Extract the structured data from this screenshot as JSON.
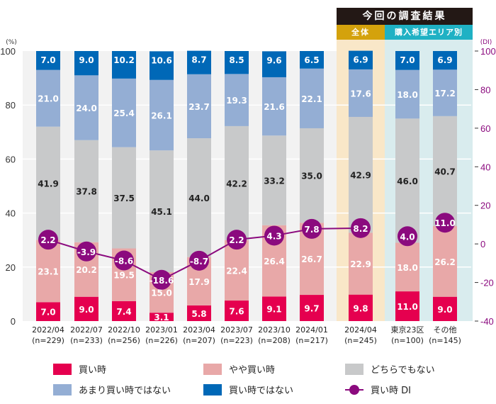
{
  "header": {
    "title": "今回の調査結果",
    "all_label": "全体",
    "area_label": "購入希望エリア別"
  },
  "colors": {
    "buy": "#e5004f",
    "somewhat_buy": "#e8a8a8",
    "neither": "#c8c9ca",
    "not_really": "#94aed4",
    "not_buy": "#0068b7",
    "di": "#8b0a7e",
    "bg_past": "#f2f2f2",
    "bg_all": "#f9e7c8",
    "bg_area": "#d9ecee"
  },
  "chart_data": {
    "type": "bar",
    "stacked": true,
    "title": "今回の調査結果",
    "ylabel": "(%)",
    "y2label": "(DI)",
    "ylim": [
      0,
      100
    ],
    "y2lim": [
      -40,
      100
    ],
    "yticks": [
      0,
      20,
      40,
      60,
      80,
      100
    ],
    "y2ticks": [
      -40,
      -20,
      0,
      20,
      40,
      60,
      80,
      100
    ],
    "grid": true,
    "legend_position": "bottom",
    "categories": [
      "2022/04",
      "2022/07",
      "2022/10",
      "2023/01",
      "2023/04",
      "2023/07",
      "2023/10",
      "2024/01",
      "2024/04",
      "東京23区",
      "その他"
    ],
    "sample_sizes": [
      "(n=229)",
      "(n=233)",
      "(n=256)",
      "(n=226)",
      "(n=207)",
      "(n=223)",
      "(n=208)",
      "(n=217)",
      "(n=245)",
      "(n=100)",
      "(n=145)"
    ],
    "groups": [
      "past",
      "past",
      "past",
      "past",
      "past",
      "past",
      "past",
      "past",
      "all",
      "area",
      "area"
    ],
    "series": [
      {
        "name": "買い時",
        "key": "buy",
        "values": [
          7.0,
          9.0,
          7.4,
          3.1,
          5.8,
          7.6,
          9.1,
          9.7,
          9.8,
          11.0,
          9.0
        ]
      },
      {
        "name": "やや買い時",
        "key": "somewhat_buy",
        "values": [
          23.1,
          20.2,
          19.5,
          15.0,
          17.9,
          22.4,
          26.4,
          26.7,
          22.9,
          18.0,
          26.2
        ]
      },
      {
        "name": "どちらでもない",
        "key": "neither",
        "values": [
          41.9,
          37.8,
          37.5,
          45.1,
          44.0,
          42.2,
          33.2,
          35.0,
          42.9,
          46.0,
          40.7
        ]
      },
      {
        "name": "あまり買い時ではない",
        "key": "not_really",
        "values": [
          21.0,
          24.0,
          25.4,
          26.1,
          23.7,
          19.3,
          21.6,
          22.1,
          17.6,
          18.0,
          17.2
        ]
      },
      {
        "name": "買い時ではない",
        "key": "not_buy",
        "values": [
          7.0,
          9.0,
          10.2,
          10.6,
          8.7,
          8.5,
          9.6,
          6.5,
          6.9,
          7.0,
          6.9
        ]
      }
    ],
    "di_series": {
      "name": "買い時DI",
      "values": [
        2.2,
        -3.9,
        -8.6,
        -18.6,
        -8.7,
        2.2,
        4.3,
        7.8,
        8.2,
        4.0,
        11.0
      ],
      "connected_through_index": 8
    }
  },
  "legend": {
    "items": [
      {
        "label": "買い時",
        "key": "buy"
      },
      {
        "label": "やや買い時",
        "key": "somewhat_buy"
      },
      {
        "label": "どちらでもない",
        "key": "neither"
      },
      {
        "label": "あまり買い時ではない",
        "key": "not_really"
      },
      {
        "label": "買い時ではない",
        "key": "not_buy"
      },
      {
        "label": "買い時 DI",
        "key": "di"
      }
    ]
  }
}
